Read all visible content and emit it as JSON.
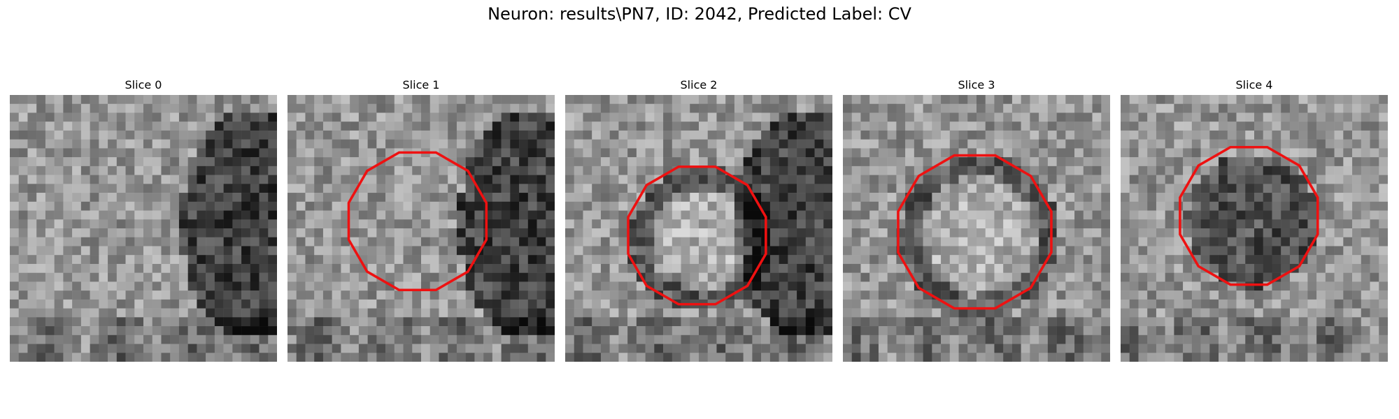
{
  "figure": {
    "title": "Neuron: results\\PN7, ID: 2042, Predicted Label: CV",
    "contour_color": "#ee1111",
    "panels": [
      {
        "title": "Slice 0",
        "has_contour": false,
        "seed": 11,
        "dark_right": true,
        "ring": false
      },
      {
        "title": "Slice 1",
        "has_contour": true,
        "seed": 27,
        "dark_right": true,
        "ring": false
      },
      {
        "title": "Slice 2",
        "has_contour": true,
        "seed": 43,
        "dark_right": true,
        "ring": true
      },
      {
        "title": "Slice 3",
        "has_contour": true,
        "seed": 59,
        "dark_right": false,
        "ring": true
      },
      {
        "title": "Slice 4",
        "has_contour": true,
        "seed": 73,
        "dark_right": false,
        "ring": false,
        "dark_center": true
      }
    ]
  }
}
